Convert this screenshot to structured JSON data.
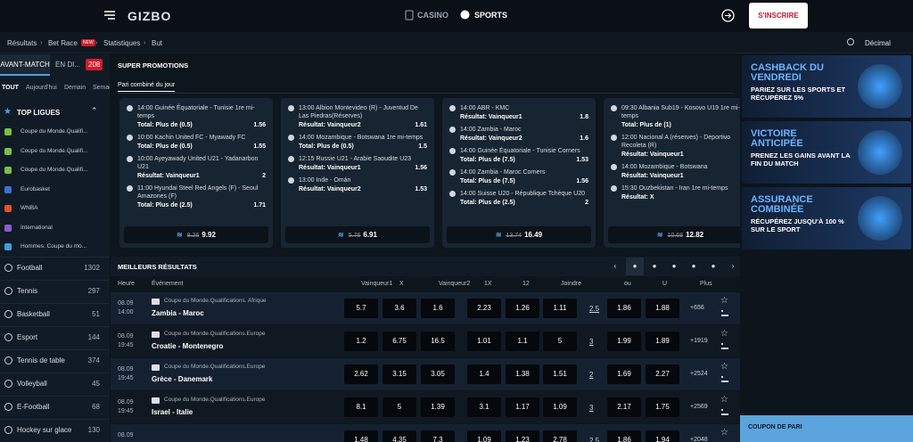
{
  "header": {
    "logo": "GIZBO",
    "nav": [
      "CASINO",
      "SPORTS"
    ],
    "signup": "S'INSCRIRE"
  },
  "breadcrumbs": {
    "items": [
      "Résultats",
      "Bet Race",
      "Statistiques",
      "But"
    ],
    "new_badge": "NEW",
    "odds_format": "Décimal"
  },
  "sidebar": {
    "tabs": [
      "AVANT-MATCH",
      "EN DI..."
    ],
    "live_count": "208",
    "filters": [
      "TOUT",
      "Aujourd'hui",
      "Demain",
      "Semaine"
    ],
    "top_leagues_title": "TOP LIGUES",
    "leagues": [
      "Coupe du Monde.Qualifi...",
      "Coupe du Monde.Qualifi...",
      "Coupe du Monde.Qualifi...",
      "Eurobasket",
      "WNBA",
      "International",
      "Hommes. Coupe du mo..."
    ],
    "sports": [
      {
        "name": "Football",
        "count": 1302
      },
      {
        "name": "Tennis",
        "count": 297
      },
      {
        "name": "Basketball",
        "count": 51
      },
      {
        "name": "Esport",
        "count": 144
      },
      {
        "name": "Tennis de table",
        "count": 374
      },
      {
        "name": "Volleyball",
        "count": 45
      },
      {
        "name": "E-Football",
        "count": 68
      },
      {
        "name": "Hockey sur glace",
        "count": 130
      }
    ]
  },
  "promotions": {
    "title": "SUPER PROMOTIONS",
    "subtitle": "Pari combiné du jour",
    "cards": [
      {
        "bets": [
          {
            "time": "14:00",
            "match": "Guinée Équatoriale - Tunisie 1re mi-temps",
            "pick": "Total: Plus de (0.5)",
            "odd": "1.56"
          },
          {
            "time": "10:00",
            "match": "Kachin United FC - Myawady FC",
            "pick": "Total: Plus de (0.5)",
            "odd": "1.55"
          },
          {
            "time": "10:00",
            "match": "Ayeyawady United U21 - Yadanarbon U21",
            "pick": "Résultat: Vainqueur1",
            "odd": "2"
          },
          {
            "time": "11:00",
            "match": "Hyundai Steel Red Angels (F) - Seoul Amazones (F)",
            "pick": "Total: Plus de (2.5)",
            "odd": "1.71"
          }
        ],
        "old_total": "8.26",
        "total": "9.92"
      },
      {
        "bets": [
          {
            "time": "13:00",
            "match": "Albion Montevideo (R) - Juventud De Las Piedras(Réserves)",
            "pick": "Résultat: Vainqueur2",
            "odd": "1.61"
          },
          {
            "time": "14:00",
            "match": "Mozambique - Botswana 1re mi-temps",
            "pick": "Total: Plus de (0.5)",
            "odd": "1.5"
          },
          {
            "time": "12:15",
            "match": "Russie U21 - Arabie Saoudite U23",
            "pick": "Résultat: Vainqueur1",
            "odd": "1.56"
          },
          {
            "time": "13:00",
            "match": "Inde - Omán",
            "pick": "Résultat: Vainqueur2",
            "odd": "1.53"
          }
        ],
        "old_total": "5.76",
        "total": "6.91"
      },
      {
        "bets": [
          {
            "time": "14:00",
            "match": "ABR - KMC",
            "pick": "Résultat: Vainqueur1",
            "odd": "1.8"
          },
          {
            "time": "14:00",
            "match": "Zambia - Maroc",
            "pick": "Résultat: Vainqueur2",
            "odd": "1.6"
          },
          {
            "time": "14:00",
            "match": "Guinée Équatoriale - Tunisie Corners",
            "pick": "Total: Plus de (7.5)",
            "odd": "1.53"
          },
          {
            "time": "14:00",
            "match": "Zambia - Maroc Corners",
            "pick": "Total: Plus de (7.5)",
            "odd": "1.56"
          },
          {
            "time": "14:00",
            "match": "Suisse U20 - République Tchèque U20",
            "pick": "Total: Plus de (2.5)",
            "odd": "2"
          }
        ],
        "old_total": "13.74",
        "total": "16.49"
      },
      {
        "bets": [
          {
            "time": "09:30",
            "match": "Albania Sub19 - Kosovo U19 1re mi-temps",
            "pick": "Total: Plus de (1)"
          },
          {
            "time": "12:00",
            "match": "Nacional A (réserves) - Deportivo Recoleta (R)",
            "pick": "Résultat: Vainqueur1"
          },
          {
            "time": "14:00",
            "match": "Mozambique - Botswana",
            "pick": "Résultat: Vainqueur1"
          },
          {
            "time": "15:30",
            "match": "Ouzbekistan - Iran 1re mi-temps",
            "pick": "Résultat: X"
          }
        ],
        "old_total": "10.68",
        "total": "12.82"
      }
    ]
  },
  "results": {
    "title": "MEILLEURS RÉSULTATS",
    "columns": [
      "Heure",
      "Événement",
      "Vainqueur1",
      "X",
      "Vainqueur2",
      "1X",
      "12",
      "Joindre",
      "ou",
      "U",
      "Plus"
    ],
    "rows": [
      {
        "date": "08.09",
        "time": "14:00",
        "league": "Coupe du Monde.Qualifications. Afrique",
        "home": "Zambia",
        "away": "Maroc",
        "odds": [
          "5.7",
          "3.6",
          "1.6",
          "2.23",
          "1.26",
          "1.11"
        ],
        "line": "2.5",
        "totals": [
          "1.86",
          "1.88"
        ],
        "more": "+656"
      },
      {
        "date": "08.09",
        "time": "19:45",
        "league": "Coupe du Monde.Qualifications.Europe",
        "home": "Croatie",
        "away": "Montenegro",
        "odds": [
          "1.2",
          "6.75",
          "16.5",
          "1.01",
          "1.1",
          "5"
        ],
        "line": "3",
        "totals": [
          "1.99",
          "1.89"
        ],
        "more": "+1919"
      },
      {
        "date": "08.09",
        "time": "19:45",
        "league": "Coupe du Monde.Qualifications.Europe",
        "home": "Grèce",
        "away": "Danemark",
        "odds": [
          "2.62",
          "3.15",
          "3.05",
          "1.4",
          "1.38",
          "1.51"
        ],
        "line": "2",
        "totals": [
          "1.69",
          "2.27"
        ],
        "more": "+2524"
      },
      {
        "date": "08.09",
        "time": "19:45",
        "league": "Coupe du Monde.Qualifications.Europe",
        "home": "Israel",
        "away": "Italie",
        "odds": [
          "8.1",
          "5",
          "1.39",
          "3.1",
          "1.17",
          "1.09"
        ],
        "line": "3",
        "totals": [
          "2.17",
          "1.75"
        ],
        "more": "+2569"
      },
      {
        "date": "08.09",
        "odds": [
          "1.48",
          "4.35",
          "7.3",
          "1.09",
          "1.23",
          "2.78"
        ],
        "line": "2.5",
        "totals": [
          "1.86",
          "1.94"
        ],
        "more": "+2048"
      }
    ]
  },
  "banners": [
    {
      "title": "CASHBACK DU VENDREDI",
      "text": "PARIEZ SUR LES SPORTS ET RÉCUPÉREZ 5%"
    },
    {
      "title": "VICTOIRE ANTICIPÉE",
      "text": "PRENEZ LES GAINS AVANT LA FIN DU MATCH"
    },
    {
      "title": "ASSURANCE COMBINÉE",
      "text": "RÉCUPÉREZ JUSQU'À 100 % SUR LE SPORT"
    }
  ],
  "coupon": "COUPON DE PARI"
}
